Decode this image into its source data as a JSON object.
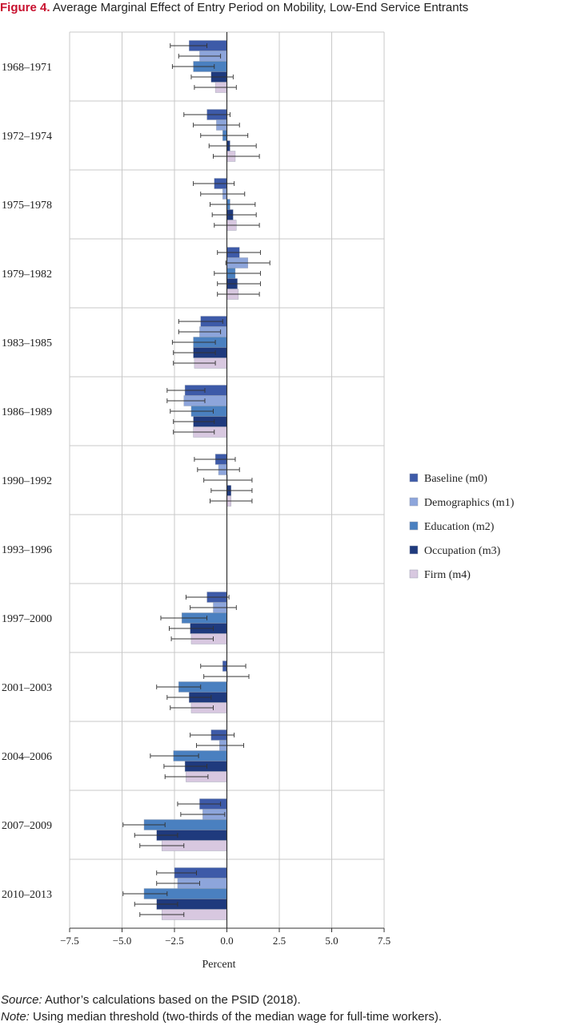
{
  "figure": {
    "label": "Figure 4.",
    "title": "Average Marginal Effect of Entry Period on Mobility, Low-End Service Entrants"
  },
  "notes": {
    "source_label": "Source:",
    "source_text": "Author’s calculations based on the PSID (2018).",
    "note_label": "Note:",
    "note_text": "Using median threshold (two-thirds of the median wage for full-time workers)."
  },
  "chart_data": {
    "type": "bar",
    "orientation": "horizontal",
    "xlabel": "Percent",
    "ylabel": "",
    "xlim": [
      -7.5,
      7.5
    ],
    "xticks": [
      -7.5,
      -5.0,
      -2.5,
      0.0,
      2.5,
      5.0,
      7.5
    ],
    "xtick_labels": [
      "−7.5",
      "−5.0",
      "−2.5",
      "0.0",
      "2.5",
      "5.0",
      "7.5"
    ],
    "grid": true,
    "legend_position": "right",
    "categories": [
      "1968–1971",
      "1972–1974",
      "1975–1978",
      "1979–1982",
      "1983–1985",
      "1986–1989",
      "1990–1992",
      "1993–1996",
      "1997–2000",
      "2001–2003",
      "2004–2006",
      "2007–2009",
      "2010–2013"
    ],
    "series": [
      {
        "name": "Baseline (m0)",
        "color": "#3d5aa8",
        "values": [
          -1.8,
          -0.95,
          -0.6,
          0.6,
          -1.25,
          -2.0,
          -0.55,
          null,
          -0.95,
          -0.2,
          -0.75,
          -1.3,
          -2.5
        ],
        "ci_low": [
          -2.7,
          -2.05,
          -1.6,
          -0.45,
          -2.3,
          -2.85,
          -1.55,
          null,
          -1.95,
          -1.25,
          -1.75,
          -2.35,
          -3.35
        ],
        "ci_high": [
          -0.95,
          0.15,
          0.35,
          1.6,
          -0.2,
          -1.05,
          0.4,
          null,
          0.1,
          0.9,
          0.35,
          -0.3,
          -1.45
        ]
      },
      {
        "name": "Demographics (m1)",
        "color": "#8da5db",
        "values": [
          -1.3,
          -0.5,
          -0.2,
          1.0,
          -1.3,
          -2.05,
          -0.4,
          null,
          -0.65,
          0.0,
          -0.35,
          -1.15,
          -2.35
        ],
        "ci_low": [
          -2.3,
          -1.6,
          -1.25,
          -0.05,
          -2.3,
          -2.85,
          -1.4,
          null,
          -1.75,
          -1.1,
          -1.45,
          -2.2,
          -3.35
        ],
        "ci_high": [
          -0.3,
          0.6,
          0.85,
          2.05,
          -0.3,
          -1.05,
          0.6,
          null,
          0.45,
          1.05,
          0.8,
          -0.1,
          -1.3
        ]
      },
      {
        "name": "Education (m2)",
        "color": "#4a80c0",
        "values": [
          -1.6,
          -0.2,
          0.15,
          0.4,
          -1.6,
          -1.7,
          0.0,
          null,
          -2.15,
          -2.3,
          -2.55,
          -3.95,
          -3.95
        ],
        "ci_low": [
          -2.6,
          -1.25,
          -0.8,
          -0.6,
          -2.6,
          -2.7,
          -1.1,
          null,
          -3.15,
          -3.35,
          -3.65,
          -4.95,
          -4.95
        ],
        "ci_high": [
          -0.6,
          1.0,
          1.35,
          1.6,
          -0.55,
          -0.65,
          1.2,
          null,
          -0.95,
          -1.25,
          -1.35,
          -2.95,
          -2.85
        ]
      },
      {
        "name": "Occupation (m3)",
        "color": "#1f3a7d",
        "values": [
          -0.75,
          0.15,
          0.3,
          0.5,
          -1.6,
          -1.6,
          0.2,
          null,
          -1.75,
          -1.8,
          -2.0,
          -3.35,
          -3.35
        ],
        "ci_low": [
          -1.7,
          -0.85,
          -0.7,
          -0.45,
          -2.55,
          -2.55,
          -0.75,
          null,
          -2.75,
          -2.85,
          -3.0,
          -4.4,
          -4.4
        ],
        "ci_high": [
          0.3,
          1.4,
          1.4,
          1.6,
          -0.55,
          -0.6,
          1.2,
          null,
          -0.65,
          -0.75,
          -0.95,
          -2.35,
          -2.35
        ]
      },
      {
        "name": "Firm (m4)",
        "color": "#d8c8e0",
        "values": [
          -0.55,
          0.4,
          0.45,
          0.55,
          -1.55,
          -1.6,
          0.2,
          null,
          -1.7,
          -1.7,
          -1.95,
          -3.1,
          -3.1
        ],
        "ci_low": [
          -1.55,
          -0.65,
          -0.6,
          -0.45,
          -2.55,
          -2.55,
          -0.8,
          null,
          -2.65,
          -2.7,
          -2.95,
          -4.15,
          -4.15
        ],
        "ci_high": [
          0.45,
          1.55,
          1.55,
          1.55,
          -0.55,
          -0.6,
          1.2,
          null,
          -0.65,
          -0.65,
          -0.9,
          -2.05,
          -2.05
        ]
      }
    ]
  }
}
